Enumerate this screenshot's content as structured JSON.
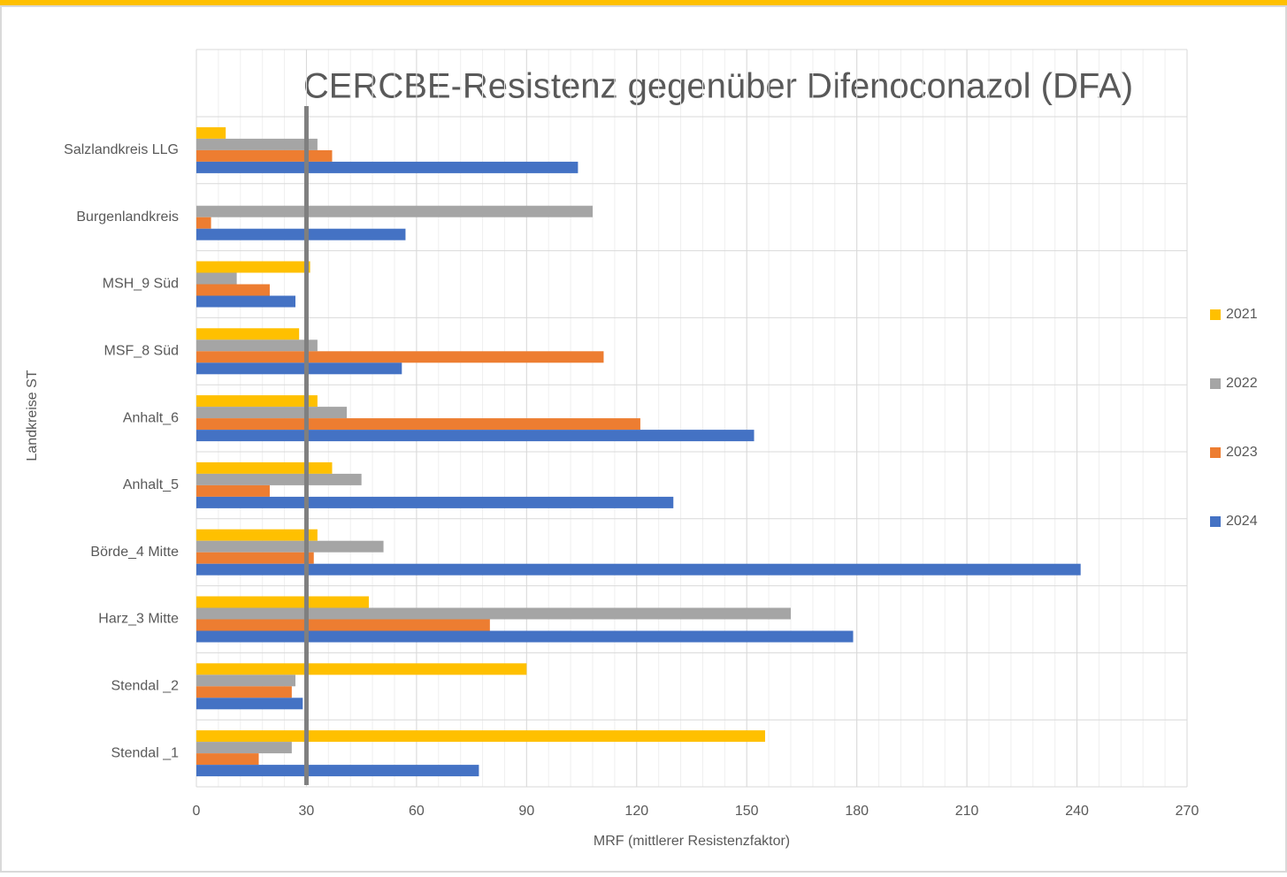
{
  "chart_data": {
    "type": "barh",
    "title": "CERCBE-Resistenz gegenüber Difenoconazol (DFA)",
    "xlabel": "MRF (mittlerer Resistenzfaktor)",
    "ylabel": "Landkreise ST",
    "categories": [
      "Salzlandkreis LLG",
      "Burgenlandkreis",
      "MSH_9 Süd",
      "MSF_8 Süd",
      "Anhalt_6",
      "Anhalt_5",
      "Börde_4 Mitte",
      "Harz_3 Mitte",
      "Stendal _2",
      "Stendal _1"
    ],
    "series": [
      {
        "name": "2021",
        "color": "#ffc000",
        "values": [
          8,
          null,
          31,
          28,
          33,
          37,
          33,
          47,
          90,
          155
        ]
      },
      {
        "name": "2022",
        "color": "#a5a5a5",
        "values": [
          33,
          108,
          11,
          33,
          41,
          45,
          51,
          162,
          27,
          26
        ]
      },
      {
        "name": "2023",
        "color": "#ed7d31",
        "values": [
          37,
          4,
          20,
          111,
          121,
          20,
          32,
          80,
          26,
          17
        ]
      },
      {
        "name": "2024",
        "color": "#4472c4",
        "values": [
          104,
          57,
          27,
          56,
          152,
          130,
          241,
          179,
          29,
          77
        ]
      }
    ],
    "xlim": [
      0,
      270
    ],
    "xticks": [
      0,
      30,
      60,
      90,
      120,
      150,
      180,
      210,
      240,
      270
    ],
    "minor_grid_step": 6,
    "reference_line": 30,
    "grid": true,
    "legend": "right"
  }
}
